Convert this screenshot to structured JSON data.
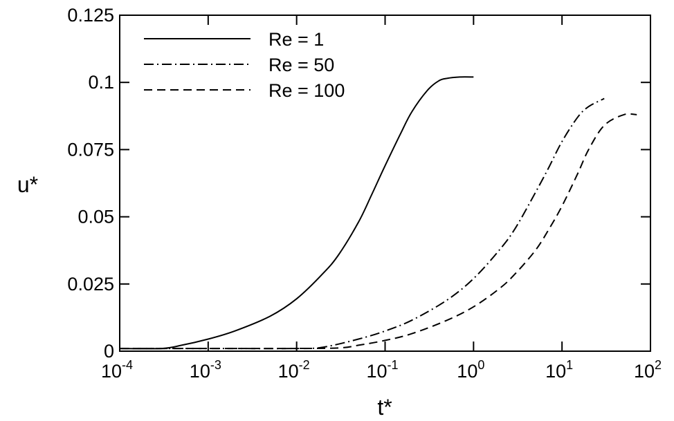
{
  "chart_data": {
    "type": "line",
    "title": "",
    "xlabel": "t*",
    "ylabel": "u*",
    "xscale": "log",
    "xlim": [
      0.0001,
      100
    ],
    "ylim": [
      0,
      0.125
    ],
    "grid": false,
    "legend_position": "top-left",
    "x_ticks": [
      {
        "value": 0.0001,
        "base": "10",
        "exp": "-4"
      },
      {
        "value": 0.001,
        "base": "10",
        "exp": "-3"
      },
      {
        "value": 0.01,
        "base": "10",
        "exp": "-2"
      },
      {
        "value": 0.1,
        "base": "10",
        "exp": "-1"
      },
      {
        "value": 1,
        "base": "10",
        "exp": "0"
      },
      {
        "value": 10,
        "base": "10",
        "exp": "1"
      },
      {
        "value": 100,
        "base": "10",
        "exp": "2"
      }
    ],
    "y_ticks": [
      {
        "value": 0,
        "label": "0"
      },
      {
        "value": 0.025,
        "label": "0.025"
      },
      {
        "value": 0.05,
        "label": "0.05"
      },
      {
        "value": 0.075,
        "label": "0.075"
      },
      {
        "value": 0.1,
        "label": "0.1"
      },
      {
        "value": 0.125,
        "label": "0.125"
      }
    ],
    "series": [
      {
        "name": "Re = 1",
        "line_style": "solid",
        "x": [
          0.0001,
          0.0003,
          0.0005,
          0.001,
          0.002,
          0.005,
          0.01,
          0.02,
          0.03,
          0.05,
          0.07,
          0.1,
          0.15,
          0.2,
          0.3,
          0.4,
          0.5,
          0.7,
          1.0
        ],
        "y": [
          0.001,
          0.001,
          0.0022,
          0.0045,
          0.0075,
          0.013,
          0.0195,
          0.029,
          0.036,
          0.048,
          0.058,
          0.069,
          0.081,
          0.089,
          0.097,
          0.1005,
          0.1015,
          0.102,
          0.102
        ]
      },
      {
        "name": "Re = 50",
        "line_style": "dash-dot",
        "x": [
          0.0001,
          0.001,
          0.01,
          0.02,
          0.05,
          0.1,
          0.2,
          0.5,
          1,
          2,
          3,
          5,
          7,
          10,
          15,
          20,
          30
        ],
        "y": [
          0.001,
          0.001,
          0.001,
          0.0015,
          0.0045,
          0.0075,
          0.0115,
          0.019,
          0.027,
          0.038,
          0.046,
          0.059,
          0.068,
          0.078,
          0.087,
          0.091,
          0.094
        ]
      },
      {
        "name": "Re = 100",
        "line_style": "dashed",
        "x": [
          0.0001,
          0.001,
          0.01,
          0.03,
          0.05,
          0.1,
          0.2,
          0.5,
          1,
          2,
          3,
          5,
          7,
          10,
          15,
          20,
          30,
          50,
          70
        ],
        "y": [
          0.001,
          0.001,
          0.001,
          0.0012,
          0.0022,
          0.004,
          0.0065,
          0.0115,
          0.0165,
          0.0235,
          0.029,
          0.0375,
          0.045,
          0.054,
          0.066,
          0.075,
          0.084,
          0.088,
          0.088
        ]
      }
    ]
  }
}
